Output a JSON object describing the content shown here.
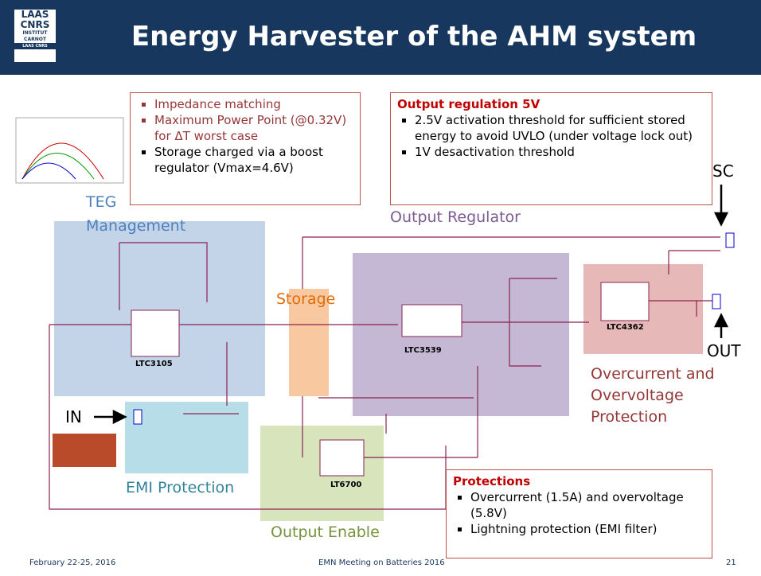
{
  "header": {
    "title": "Energy Harvester of the AHM system",
    "logo": [
      "LAAS",
      "CNRS",
      "INSTITUT",
      "CARNOT",
      "LAAS CNRS"
    ]
  },
  "teg_box": {
    "bullets": [
      "Impedance matching",
      "Maximum Power Point (@0.32V) for ΔT worst case",
      "Storage charged via a boost regulator (Vmax=4.6V)"
    ]
  },
  "regulation_box": {
    "title": "Output regulation 5V",
    "bullets": [
      "2.5V activation threshold for sufficient stored energy to avoid UVLO (under voltage lock out)",
      "1V desactivation threshold"
    ]
  },
  "regions": {
    "teg": [
      "TEG",
      "Management"
    ],
    "storage": "Storage",
    "output_regulator": "Output Regulator",
    "protection": [
      "Overcurrent and",
      "Overvoltage",
      "Protection"
    ],
    "emi": "EMI Protection",
    "output_enable": "Output Enable"
  },
  "chips": [
    "LTC3105",
    "LTC3539",
    "LTC4362",
    "LT6700"
  ],
  "io": {
    "sc": "SC",
    "out": "OUT",
    "in": "IN"
  },
  "protections_box": {
    "title": "Protections",
    "bullets": [
      "Overcurrent (1.5A) and overvoltage (5.8V)",
      "Lightning protection (EMI filter)"
    ]
  },
  "footer": {
    "date": "February 22-25, 2016",
    "event": "EMN Meeting on Batteries 2016",
    "page": "21"
  }
}
